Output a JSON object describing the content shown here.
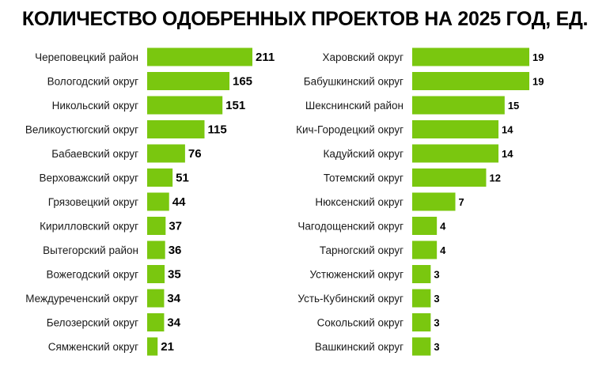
{
  "title": "КОЛИЧЕСТВО ОДОБРЕННЫХ ПРОЕКТОВ НА 2025 ГОД, ЕД.",
  "bar_color": "#7AC70F",
  "chart_data": [
    {
      "type": "bar",
      "orientation": "horizontal",
      "title": "",
      "xlabel": "",
      "ylabel": "",
      "xlim": [
        0,
        211
      ],
      "categories": [
        "Череповецкий район",
        "Вологодский округ",
        "Никольский округ",
        "Великоустюгский округ",
        "Бабаевский округ",
        "Верховажский округ",
        "Грязовецкий округ",
        "Кирилловский округ",
        "Вытегорский район",
        "Вожегодский округ",
        "Междуреченский округ",
        "Белозерский округ",
        "Сямженский округ"
      ],
      "values": [
        211,
        165,
        151,
        115,
        76,
        51,
        44,
        37,
        36,
        35,
        34,
        34,
        21
      ]
    },
    {
      "type": "bar",
      "orientation": "horizontal",
      "title": "",
      "xlabel": "",
      "ylabel": "",
      "xlim": [
        0,
        19
      ],
      "categories": [
        "Харовский округ",
        "Бабушкинский округ",
        "Шекснинский район",
        "Кич-Городецкий округ",
        "Кадуйский округ",
        "Тотемский округ",
        "Нюксенский округ",
        "Чагодощенский округ",
        "Тарногский округ",
        "Устюженский округ",
        "Усть-Кубинский округ",
        "Сокольский округ",
        "Вашкинский округ"
      ],
      "values": [
        19,
        19,
        15,
        14,
        14,
        12,
        7,
        4,
        4,
        3,
        3,
        3,
        3
      ]
    }
  ]
}
